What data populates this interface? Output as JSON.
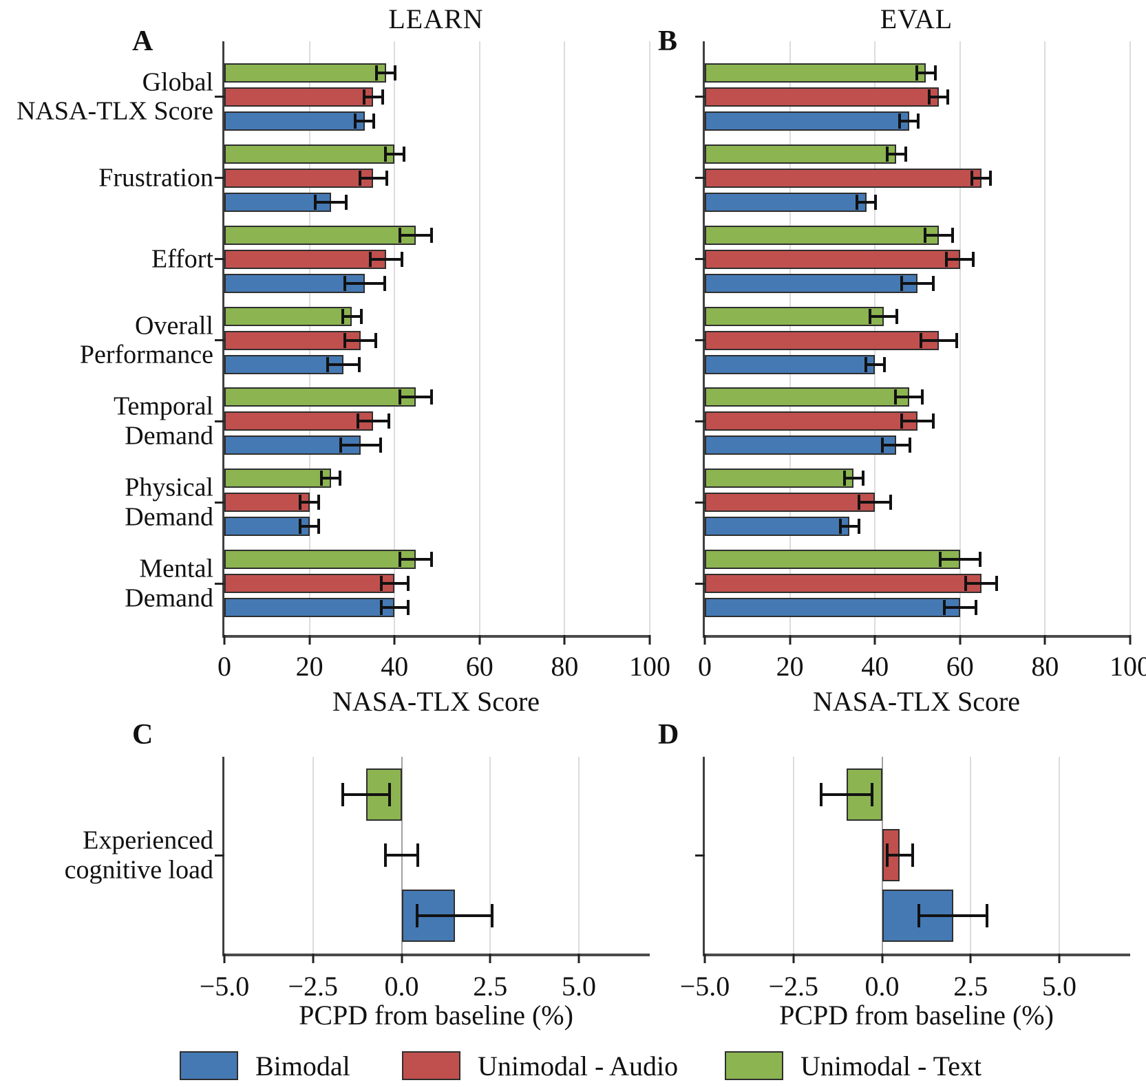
{
  "figure": {
    "background": "#ffffff",
    "bar_outline_color": "#2e2e2e",
    "error_bar_color": "#111111",
    "legend": {
      "items": [
        {
          "label": "Bimodal",
          "color": "#4579B4"
        },
        {
          "label": "Unimodal - Audio",
          "color": "#C0504D"
        },
        {
          "label": "Unimodal - Text",
          "color": "#8CB451"
        }
      ]
    }
  },
  "chart_data": [
    {
      "id": "learn_nasa_tlx",
      "panel_letter": "A",
      "title": "LEARN",
      "type": "bar",
      "orientation": "horizontal",
      "xlabel": "NASA-TLX Score",
      "xlim": [
        0,
        100
      ],
      "xticks": [
        0,
        20,
        40,
        60,
        80,
        100
      ],
      "xtick_labels": [
        "0",
        "20",
        "40",
        "60",
        "80",
        "100"
      ],
      "grid": true,
      "legend_position": "bottom",
      "categories": [
        "Global\nNASA-TLX Score",
        "Frustration",
        "Effort",
        "Overall\nPerformance",
        "Temporal\nDemand",
        "Physical\nDemand",
        "Mental\nDemand"
      ],
      "series": [
        {
          "name": "Unimodal - Text",
          "color": "#8CB451",
          "values": [
            38,
            40,
            45,
            30,
            45,
            25,
            45
          ],
          "errors": [
            2.5,
            2.5,
            4,
            2.5,
            4,
            2.5,
            4
          ]
        },
        {
          "name": "Unimodal - Audio",
          "color": "#C0504D",
          "values": [
            35,
            35,
            38,
            32,
            35,
            20,
            40
          ],
          "errors": [
            2.5,
            3.5,
            4,
            4,
            4,
            2.5,
            3.5
          ]
        },
        {
          "name": "Bimodal",
          "color": "#4579B4",
          "values": [
            33,
            25,
            33,
            28,
            32,
            20,
            40
          ],
          "errors": [
            2.5,
            4,
            5,
            4,
            5,
            2.5,
            3.5
          ]
        }
      ]
    },
    {
      "id": "eval_nasa_tlx",
      "panel_letter": "B",
      "title": "EVAL",
      "type": "bar",
      "orientation": "horizontal",
      "xlabel": "NASA-TLX Score",
      "xlim": [
        0,
        100
      ],
      "xticks": [
        0,
        20,
        40,
        60,
        80,
        100
      ],
      "xtick_labels": [
        "0",
        "20",
        "40",
        "60",
        "80",
        "100"
      ],
      "grid": true,
      "legend_position": "bottom",
      "categories": [
        "Global\nNASA-TLX Score",
        "Frustration",
        "Effort",
        "Overall\nPerformance",
        "Temporal\nDemand",
        "Physical\nDemand",
        "Mental\nDemand"
      ],
      "series": [
        {
          "name": "Unimodal - Text",
          "color": "#8CB451",
          "values": [
            52,
            45,
            55,
            42,
            48,
            35,
            60
          ],
          "errors": [
            2.5,
            2.5,
            3.5,
            3.5,
            3.5,
            2.5,
            5
          ]
        },
        {
          "name": "Unimodal - Audio",
          "color": "#C0504D",
          "values": [
            55,
            65,
            60,
            55,
            50,
            40,
            65
          ],
          "errors": [
            2.5,
            2.5,
            3.5,
            4.5,
            4,
            4,
            4
          ]
        },
        {
          "name": "Bimodal",
          "color": "#4579B4",
          "values": [
            48,
            38,
            50,
            40,
            45,
            34,
            60
          ],
          "errors": [
            2.5,
            2.5,
            4,
            2.5,
            3.5,
            2.5,
            4
          ]
        }
      ]
    },
    {
      "id": "learn_pcpd",
      "panel_letter": "C",
      "title": "",
      "type": "bar",
      "orientation": "horizontal",
      "xlabel": "PCPD from baseline (%)",
      "xlim": [
        -5,
        7
      ],
      "xticks": [
        -5,
        -2.5,
        0,
        2.5,
        5
      ],
      "xtick_labels": [
        "−5.0",
        "−2.5",
        "0.0",
        "2.5",
        "5.0"
      ],
      "grid": true,
      "legend_position": "bottom",
      "categories": [
        "Experienced\ncognitive load"
      ],
      "series": [
        {
          "name": "Unimodal - Text",
          "color": "#8CB451",
          "values": [
            -1.0
          ],
          "errors": [
            0.7
          ]
        },
        {
          "name": "Unimodal - Audio",
          "color": "#C0504D",
          "values": [
            0.0
          ],
          "errors": [
            0.5
          ]
        },
        {
          "name": "Bimodal",
          "color": "#4579B4",
          "values": [
            1.5
          ],
          "errors": [
            1.1
          ]
        }
      ]
    },
    {
      "id": "eval_pcpd",
      "panel_letter": "D",
      "title": "",
      "type": "bar",
      "orientation": "horizontal",
      "xlabel": "PCPD from baseline (%)",
      "xlim": [
        -5,
        7
      ],
      "xticks": [
        -5,
        -2.5,
        0,
        2.5,
        5
      ],
      "xtick_labels": [
        "−5.0",
        "−2.5",
        "0.0",
        "2.5",
        "5.0"
      ],
      "grid": true,
      "legend_position": "bottom",
      "categories": [
        "Experienced\ncognitive load"
      ],
      "series": [
        {
          "name": "Unimodal - Text",
          "color": "#8CB451",
          "values": [
            -1.0
          ],
          "errors": [
            0.75
          ]
        },
        {
          "name": "Unimodal - Audio",
          "color": "#C0504D",
          "values": [
            0.5
          ],
          "errors": [
            0.4
          ]
        },
        {
          "name": "Bimodal",
          "color": "#4579B4",
          "values": [
            2.0
          ],
          "errors": [
            1.0
          ]
        }
      ]
    }
  ]
}
